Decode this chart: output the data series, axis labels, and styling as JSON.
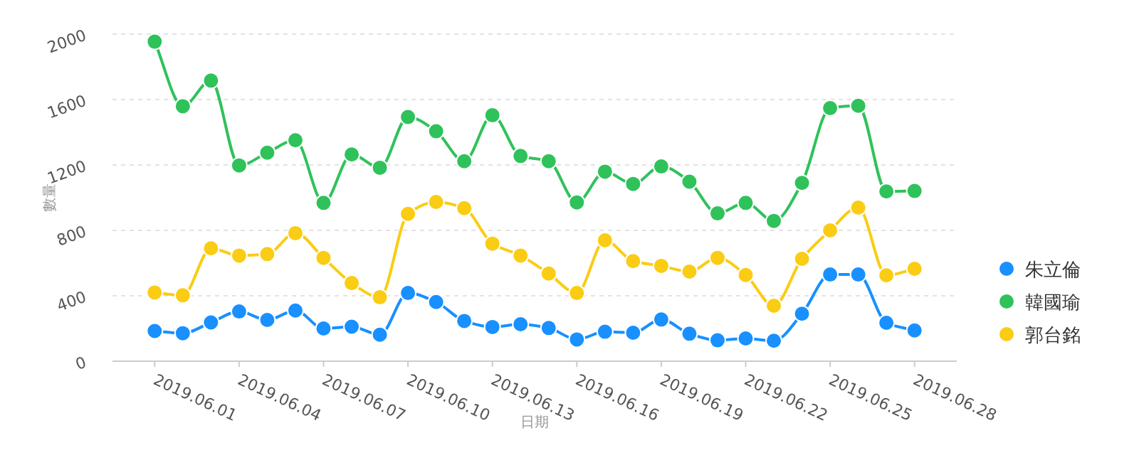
{
  "chart_data": {
    "type": "line",
    "xlabel": "日期",
    "ylabel": "數量",
    "x": [
      "2019-06-01",
      "2019-06-02",
      "2019-06-03",
      "2019-06-04",
      "2019-06-05",
      "2019-06-06",
      "2019-06-07",
      "2019-06-08",
      "2019-06-09",
      "2019-06-10",
      "2019-06-11",
      "2019-06-12",
      "2019-06-13",
      "2019-06-14",
      "2019-06-15",
      "2019-06-16",
      "2019-06-17",
      "2019-06-18",
      "2019-06-19",
      "2019-06-20",
      "2019-06-21",
      "2019-06-22",
      "2019-06-23",
      "2019-06-24",
      "2019-06-25",
      "2019-06-26",
      "2019-06-27",
      "2019-06-28"
    ],
    "series": [
      {
        "name": "朱立倫",
        "color": "#1890ff",
        "values": [
          185,
          171,
          237,
          304,
          252,
          310,
          200,
          211,
          162,
          417,
          362,
          246,
          209,
          226,
          203,
          133,
          180,
          174,
          255,
          168,
          128,
          139,
          125,
          290,
          530,
          530,
          235,
          188
        ]
      },
      {
        "name": "韓國瑜",
        "color": "#2fc25b",
        "values": [
          1954,
          1559,
          1716,
          1197,
          1275,
          1351,
          968,
          1264,
          1183,
          1493,
          1406,
          1223,
          1504,
          1255,
          1223,
          971,
          1159,
          1084,
          1191,
          1098,
          904,
          968,
          858,
          1090,
          1548,
          1562,
          1038,
          1041
        ]
      },
      {
        "name": "郭台銘",
        "color": "#facc14",
        "values": [
          420,
          403,
          690,
          646,
          655,
          783,
          632,
          478,
          391,
          901,
          974,
          936,
          719,
          646,
          536,
          417,
          739,
          612,
          583,
          548,
          632,
          527,
          339,
          626,
          800,
          939,
          525,
          565
        ]
      }
    ],
    "xlim": [
      "2019-05-30T12:00",
      "2019-06-29T12:00"
    ],
    "xticks": [
      {
        "value": "2019-06-01",
        "label": "2019.06.01"
      },
      {
        "value": "2019-06-04",
        "label": "2019.06.04"
      },
      {
        "value": "2019-06-07",
        "label": "2019.06.07"
      },
      {
        "value": "2019-06-10",
        "label": "2019.06.10"
      },
      {
        "value": "2019-06-13",
        "label": "2019.06.13"
      },
      {
        "value": "2019-06-16",
        "label": "2019.06.16"
      },
      {
        "value": "2019-06-19",
        "label": "2019.06.19"
      },
      {
        "value": "2019-06-22",
        "label": "2019.06.22"
      },
      {
        "value": "2019-06-25",
        "label": "2019.06.25"
      },
      {
        "value": "2019-06-28",
        "label": "2019.06.28"
      }
    ],
    "ylim": [
      0,
      2000
    ],
    "yticks": [
      0,
      400,
      800,
      1200,
      1600,
      2000
    ],
    "grid": "y",
    "legend": "right",
    "marker": "circle",
    "line_style": "solid"
  }
}
